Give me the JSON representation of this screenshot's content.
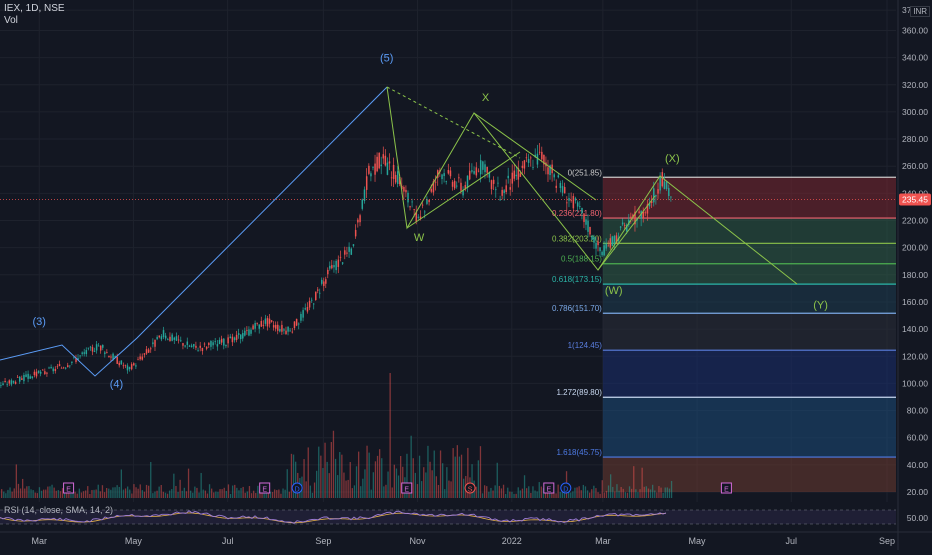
{
  "header": {
    "symbol_line": "IEX, 1D, NSE",
    "volume_label": "Vol"
  },
  "currency": "INR",
  "rsi_label": "RSI (14, close, SMA, 14, 2)",
  "rsi_axis_value": "50.00",
  "last_price_label": "235.45",
  "colors": {
    "bg": "#131722",
    "up": "#26a69a",
    "down": "#ef5350",
    "wave": "#5b9cf6",
    "corrective": "#8bc34a"
  },
  "chart_data": {
    "type": "candlestick",
    "x_ticks": [
      "Mar",
      "May",
      "Jul",
      "Sep",
      "Nov",
      "2022",
      "Mar",
      "May",
      "Jul",
      "Sep"
    ],
    "y_ticks": [
      "20.00",
      "40.00",
      "60.00",
      "80.00",
      "100.00",
      "120.00",
      "140.00",
      "160.00",
      "180.00",
      "200.00",
      "220.00",
      "240.00",
      "260.00",
      "280.00",
      "300.00",
      "320.00",
      "340.00",
      "360.00",
      "375.00"
    ],
    "ylim": [
      20,
      375
    ],
    "price_points": [
      {
        "t": "2021-02-01",
        "p": 98
      },
      {
        "t": "2021-03-15",
        "p": 112
      },
      {
        "t": "2021-04-08",
        "p": 128
      },
      {
        "t": "2021-04-28",
        "p": 110
      },
      {
        "t": "2021-05-20",
        "p": 136
      },
      {
        "t": "2021-06-10",
        "p": 126
      },
      {
        "t": "2021-07-05",
        "p": 132
      },
      {
        "t": "2021-07-25",
        "p": 146
      },
      {
        "t": "2021-08-10",
        "p": 138
      },
      {
        "t": "2021-08-24",
        "p": 160
      },
      {
        "t": "2021-09-06",
        "p": 185
      },
      {
        "t": "2021-09-20",
        "p": 200
      },
      {
        "t": "2021-09-30",
        "p": 255
      },
      {
        "t": "2021-10-08",
        "p": 265
      },
      {
        "t": "2021-10-20",
        "p": 250
      },
      {
        "t": "2021-11-01",
        "p": 218
      },
      {
        "t": "2021-11-15",
        "p": 258
      },
      {
        "t": "2021-11-30",
        "p": 244
      },
      {
        "t": "2021-12-10",
        "p": 262
      },
      {
        "t": "2021-12-24",
        "p": 240
      },
      {
        "t": "2022-01-10",
        "p": 262
      },
      {
        "t": "2022-01-20",
        "p": 268
      },
      {
        "t": "2022-02-01",
        "p": 245
      },
      {
        "t": "2022-02-15",
        "p": 225
      },
      {
        "t": "2022-02-28",
        "p": 195
      },
      {
        "t": "2022-03-12",
        "p": 212
      },
      {
        "t": "2022-03-28",
        "p": 228
      },
      {
        "t": "2022-04-08",
        "p": 250
      },
      {
        "t": "2022-04-15",
        "p": 235
      }
    ],
    "elliott_labels": [
      {
        "text": "(3)",
        "t": "2021-03-01",
        "p": 143,
        "color": "#5b9cf6"
      },
      {
        "text": "(4)",
        "t": "2021-04-20",
        "p": 97,
        "color": "#5b9cf6"
      },
      {
        "text": "(5)",
        "t": "2021-10-12",
        "p": 337,
        "color": "#5b9cf6"
      },
      {
        "text": "W",
        "t": "2021-11-02",
        "p": 205,
        "color": "#8bc34a"
      },
      {
        "text": "X",
        "t": "2021-12-15",
        "p": 308,
        "color": "#8bc34a"
      },
      {
        "text": "(W)",
        "t": "2022-03-08",
        "p": 166,
        "color": "#8bc34a"
      },
      {
        "text": "(X)",
        "t": "2022-04-15",
        "p": 263,
        "color": "#8bc34a"
      },
      {
        "text": "(Y)",
        "t": "2022-07-20",
        "p": 155,
        "color": "#8bc34a"
      }
    ],
    "fib_levels": [
      {
        "ratio": "0",
        "price": 251.85,
        "label": "0(251.85)"
      },
      {
        "ratio": "0.236",
        "price": 221.8,
        "label": "0.236(221.80)"
      },
      {
        "ratio": "0.382",
        "price": 203.2,
        "label": "0.382(203.20)"
      },
      {
        "ratio": "0.5",
        "price": 188.15,
        "label": "0.5(188.15)"
      },
      {
        "ratio": "0.618",
        "price": 173.15,
        "label": "0.618(173.15)"
      },
      {
        "ratio": "0.786",
        "price": 151.7,
        "label": "0.786(151.70)"
      },
      {
        "ratio": "1",
        "price": 124.45,
        "label": "1(124.45)"
      },
      {
        "ratio": "1.272",
        "price": 89.8,
        "label": "1.272(89.80)"
      },
      {
        "ratio": "1.618",
        "price": 45.75,
        "label": "1.618(45.75)"
      }
    ],
    "event_markers": [
      {
        "letter": "E",
        "t": "2021-03-20",
        "kind": "earnings"
      },
      {
        "letter": "E",
        "t": "2021-07-25",
        "kind": "earnings"
      },
      {
        "letter": "D",
        "t": "2021-08-15",
        "kind": "dividend"
      },
      {
        "letter": "E",
        "t": "2021-10-25",
        "kind": "earnings"
      },
      {
        "letter": "S",
        "t": "2021-12-05",
        "kind": "split"
      },
      {
        "letter": "E",
        "t": "2022-01-25",
        "kind": "earnings"
      },
      {
        "letter": "D",
        "t": "2022-02-05",
        "kind": "dividend"
      },
      {
        "letter": "E",
        "t": "2022-05-20",
        "kind": "earnings"
      }
    ]
  }
}
